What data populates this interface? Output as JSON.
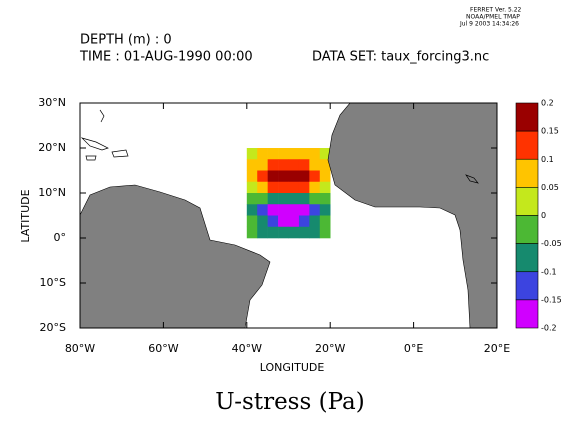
{
  "chart_data": {
    "type": "heatmap",
    "title": "U-stress (Pa)",
    "credits": [
      "FERRET Ver. 5.22",
      "NOAA/PMEL TMAP",
      "Jul  9 2003 14:34:26"
    ],
    "header": [
      "DEPTH (m) : 0",
      "TIME : 01-AUG-1990 00:00",
      "DATA SET: taux_forcing3.nc"
    ],
    "x_label": "LONGITUDE",
    "y_label": "LATITUDE",
    "xlim": [
      -80,
      20
    ],
    "ylim": [
      -20,
      30
    ],
    "xticks": [
      {
        "value": -80,
        "label": "80°W"
      },
      {
        "value": -60,
        "label": "60°W"
      },
      {
        "value": -40,
        "label": "40°W"
      },
      {
        "value": -20,
        "label": "20°W"
      },
      {
        "value": 0,
        "label": "0°E"
      },
      {
        "value": 20,
        "label": "20°E"
      }
    ],
    "yticks": [
      {
        "value": 30,
        "label": "30°N"
      },
      {
        "value": 20,
        "label": "20°N"
      },
      {
        "value": 10,
        "label": "10°N"
      },
      {
        "value": 0,
        "label": "0°"
      },
      {
        "value": -10,
        "label": "10°S"
      },
      {
        "value": -20,
        "label": "20°S"
      }
    ],
    "x": [
      -38.75,
      -36.25,
      -33.75,
      -31.25,
      -28.75,
      -26.25,
      -23.75,
      -21.25
    ],
    "y": [
      18.75,
      16.25,
      13.75,
      11.25,
      8.75,
      6.25,
      3.75,
      1.25
    ],
    "z": [
      [
        0.03,
        0.06,
        0.08,
        0.09,
        0.09,
        0.08,
        0.06,
        0.03
      ],
      [
        0.05,
        0.09,
        0.12,
        0.14,
        0.14,
        0.12,
        0.09,
        0.05
      ],
      [
        0.06,
        0.11,
        0.16,
        0.18,
        0.18,
        0.16,
        0.11,
        0.06
      ],
      [
        0.04,
        0.08,
        0.11,
        0.13,
        0.13,
        0.11,
        0.08,
        0.04
      ],
      [
        -0.02,
        -0.04,
        -0.06,
        -0.07,
        -0.07,
        -0.06,
        -0.04,
        -0.02
      ],
      [
        -0.06,
        -0.11,
        -0.16,
        -0.18,
        -0.18,
        -0.16,
        -0.11,
        -0.06
      ],
      [
        -0.05,
        -0.09,
        -0.13,
        -0.16,
        -0.16,
        -0.13,
        -0.09,
        -0.05
      ],
      [
        -0.03,
        -0.06,
        -0.08,
        -0.09,
        -0.09,
        -0.08,
        -0.06,
        -0.03
      ]
    ],
    "cell_size": 2.5,
    "levels": [
      0.2,
      0.15,
      0.1,
      0.05,
      0,
      -0.05,
      -0.1,
      -0.15,
      -0.2
    ],
    "colors": [
      "#9a0000",
      "#ff3300",
      "#ffc400",
      "#c4e81c",
      "#4cb834",
      "#168a6e",
      "#3c44e0",
      "#d000ff"
    ]
  }
}
